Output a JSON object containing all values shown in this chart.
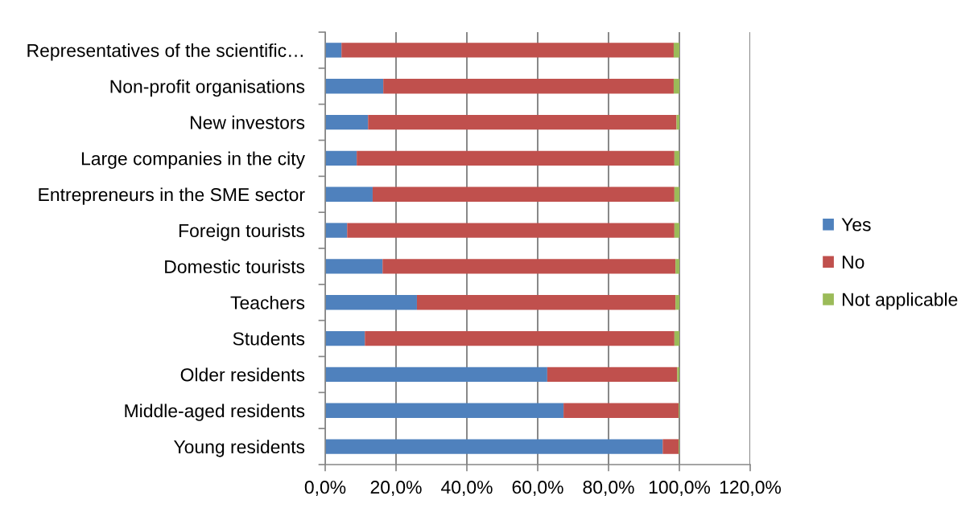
{
  "chart_data": {
    "type": "bar",
    "orientation": "horizontal",
    "stacked": true,
    "categories": [
      "Representatives of the scientific…",
      "Non-profit organisations",
      "New investors",
      "Large companies in the city",
      "Entrepreneurs in the SME sector",
      "Foreign tourists",
      "Domestic tourists",
      "Teachers",
      "Students",
      "Older residents",
      "Middle-aged residents",
      "Young residents"
    ],
    "series": [
      {
        "name": "Yes",
        "color": "#4f81bd",
        "values": [
          4.6,
          16.4,
          12.1,
          8.9,
          13.4,
          6.2,
          16.2,
          25.9,
          11.2,
          62.7,
          67.3,
          95.3
        ]
      },
      {
        "name": "No",
        "color": "#c0504d",
        "values": [
          93.8,
          82.0,
          87.1,
          89.7,
          85.2,
          92.4,
          82.7,
          73.0,
          87.4,
          36.7,
          32.5,
          4.5
        ]
      },
      {
        "name": "Not applicable",
        "color": "#9bbb59",
        "values": [
          1.6,
          1.6,
          0.8,
          1.4,
          1.4,
          1.4,
          1.1,
          1.1,
          1.4,
          0.6,
          0.2,
          0.2
        ]
      }
    ],
    "xlim": [
      0,
      120
    ],
    "xticks": [
      {
        "value": 0,
        "label": "0,0%"
      },
      {
        "value": 20,
        "label": "20,0%"
      },
      {
        "value": 40,
        "label": "40,0%"
      },
      {
        "value": 60,
        "label": "60,0%"
      },
      {
        "value": 80,
        "label": "80,0%"
      },
      {
        "value": 100,
        "label": "100,0%"
      },
      {
        "value": 120,
        "label": "120,0%"
      }
    ],
    "grid": "x",
    "legend": "right"
  }
}
